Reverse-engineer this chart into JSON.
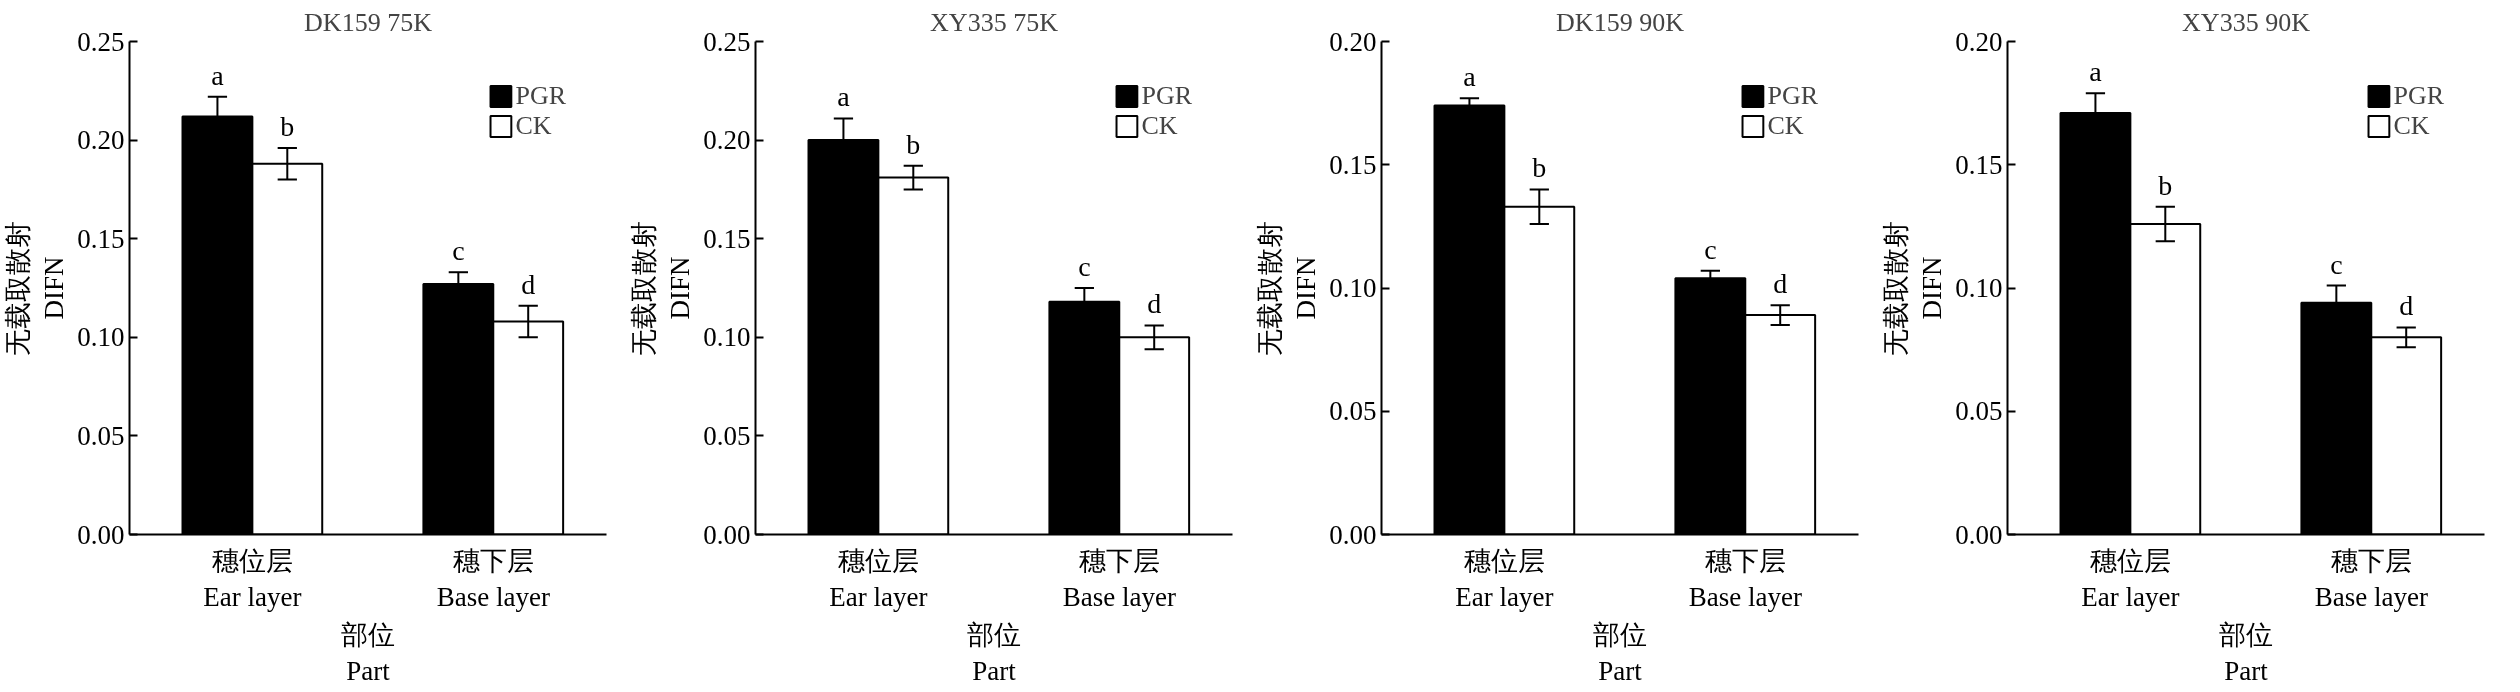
{
  "chart_data": [
    {
      "type": "bar",
      "title": "DK159 75K",
      "xlabel": "部位\nPart",
      "ylabel": "无载取散射\nDIFN",
      "categories": [
        "穗位层\nEar layer",
        "穗下层\nBase layer"
      ],
      "legend": "top right",
      "series": [
        {
          "name": "PGR",
          "color": "#000000",
          "values": [
            0.212,
            0.127
          ],
          "errors": [
            0.01,
            0.006
          ],
          "value_labels": [
            "a",
            "c"
          ]
        },
        {
          "name": "CK",
          "color": "#ffffff",
          "values": [
            0.188,
            0.108
          ],
          "errors": [
            0.008,
            0.008
          ],
          "value_labels": [
            "b",
            "d"
          ]
        }
      ],
      "ylim": [
        0,
        0.25
      ],
      "yticks": [
        {
          "value": 0,
          "label": "0.00"
        },
        {
          "value": 0.05,
          "label": "0.05"
        },
        {
          "value": 0.1,
          "label": "0.10"
        },
        {
          "value": 0.15,
          "label": "0.15"
        },
        {
          "value": 0.2,
          "label": "0.20"
        },
        {
          "value": 0.25,
          "label": "0.25"
        }
      ]
    },
    {
      "type": "bar",
      "title": "XY335 75K",
      "xlabel": "部位\nPart",
      "ylabel": "无载取散射\nDIFN",
      "categories": [
        "穗位层\nEar layer",
        "穗下层\nBase layer"
      ],
      "legend": "top right",
      "series": [
        {
          "name": "PGR",
          "color": "#000000",
          "values": [
            0.2,
            0.118
          ],
          "errors": [
            0.011,
            0.007
          ],
          "value_labels": [
            "a",
            "c"
          ]
        },
        {
          "name": "CK",
          "color": "#ffffff",
          "values": [
            0.181,
            0.1
          ],
          "errors": [
            0.006,
            0.006
          ],
          "value_labels": [
            "b",
            "d"
          ]
        }
      ],
      "ylim": [
        0,
        0.25
      ],
      "yticks": [
        {
          "value": 0,
          "label": "0.00"
        },
        {
          "value": 0.05,
          "label": "0.05"
        },
        {
          "value": 0.1,
          "label": "0.10"
        },
        {
          "value": 0.15,
          "label": "0.15"
        },
        {
          "value": 0.2,
          "label": "0.20"
        },
        {
          "value": 0.25,
          "label": "0.25"
        }
      ]
    },
    {
      "type": "bar",
      "title": "DK159 90K",
      "xlabel": "部位\nPart",
      "ylabel": "无载取散射\nDIFN",
      "categories": [
        "穗位层\nEar layer",
        "穗下层\nBase layer"
      ],
      "legend": "top right",
      "series": [
        {
          "name": "PGR",
          "color": "#000000",
          "values": [
            0.174,
            0.104
          ],
          "errors": [
            0.003,
            0.003
          ],
          "value_labels": [
            "a",
            "c"
          ]
        },
        {
          "name": "CK",
          "color": "#ffffff",
          "values": [
            0.133,
            0.089
          ],
          "errors": [
            0.007,
            0.004
          ],
          "value_labels": [
            "b",
            "d"
          ]
        }
      ],
      "ylim": [
        0,
        0.2
      ],
      "yticks": [
        {
          "value": 0,
          "label": "0.00"
        },
        {
          "value": 0.05,
          "label": "0.05"
        },
        {
          "value": 0.1,
          "label": "0.10"
        },
        {
          "value": 0.15,
          "label": "0.15"
        },
        {
          "value": 0.2,
          "label": "0.20"
        }
      ]
    },
    {
      "type": "bar",
      "title": "XY335 90K",
      "xlabel": "部位\nPart",
      "ylabel": "无载取散射\nDIFN",
      "categories": [
        "穗位层\nEar layer",
        "穗下层\nBase layer"
      ],
      "legend": "top right",
      "series": [
        {
          "name": "PGR",
          "color": "#000000",
          "values": [
            0.171,
            0.094
          ],
          "errors": [
            0.008,
            0.007
          ],
          "value_labels": [
            "a",
            "c"
          ]
        },
        {
          "name": "CK",
          "color": "#ffffff",
          "values": [
            0.126,
            0.08
          ],
          "errors": [
            0.007,
            0.004
          ],
          "value_labels": [
            "b",
            "d"
          ]
        }
      ],
      "ylim": [
        0,
        0.2
      ],
      "yticks": [
        {
          "value": 0,
          "label": "0.00"
        },
        {
          "value": 0.05,
          "label": "0.05"
        },
        {
          "value": 0.1,
          "label": "0.10"
        },
        {
          "value": 0.15,
          "label": "0.15"
        },
        {
          "value": 0.2,
          "label": "0.20"
        }
      ]
    }
  ]
}
